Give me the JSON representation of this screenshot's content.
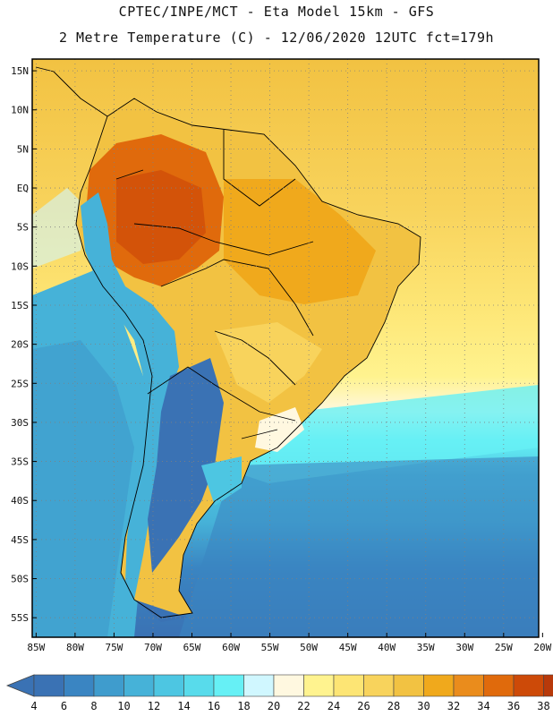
{
  "header": {
    "line1": "CPTEC/INPE/MCT  -   Eta Model 15km  -  GFS",
    "line2": "2 Metre Temperature (C) - 12/06/2020 12UTC fct=179h"
  },
  "map": {
    "lat_ticks": [
      "15N",
      "10N",
      "5N",
      "EQ",
      "5S",
      "10S",
      "15S",
      "20S",
      "25S",
      "30S",
      "35S",
      "40S",
      "45S",
      "50S",
      "55S"
    ],
    "lon_ticks": [
      "85W",
      "80W",
      "75W",
      "70W",
      "65W",
      "60W",
      "55W",
      "50W",
      "45W",
      "40W",
      "35W",
      "30W",
      "25W",
      "20W"
    ],
    "lat_range": [
      -57.5,
      16.5
    ],
    "lon_range": [
      -85.5,
      -20.5
    ],
    "grid": "dotted"
  },
  "colorbar": {
    "labels": [
      "4",
      "6",
      "8",
      "10",
      "12",
      "14",
      "16",
      "18",
      "20",
      "22",
      "24",
      "26",
      "28",
      "30",
      "32",
      "34",
      "36",
      "38"
    ],
    "colors": [
      "#3a72b4",
      "#3a85c2",
      "#3f9ccd",
      "#46b2d8",
      "#4dc6e2",
      "#58dbeb",
      "#66f0f5",
      "#d0f7ff",
      "#fff8e0",
      "#fff38f",
      "#fde574",
      "#f8d35c",
      "#f2c242",
      "#f0a91c",
      "#ea8c1c",
      "#e06a0c",
      "#cd4a08",
      "#b8390a"
    ],
    "under_color": "#3a72b4",
    "over_color": "#b8390a"
  }
}
